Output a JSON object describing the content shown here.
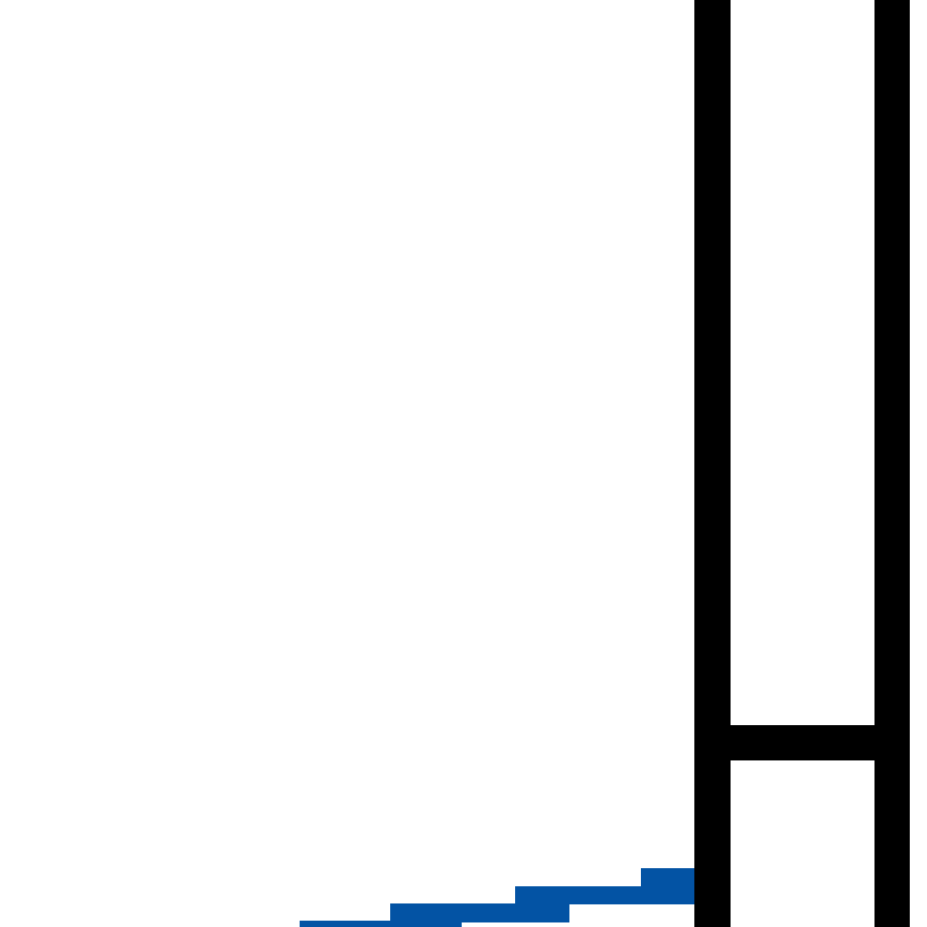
{
  "colors": {
    "background": "#ffffff",
    "frame": "#000000",
    "steps": "#0353a4"
  },
  "elements": {
    "frame": "black-ladder-frame",
    "steps": "blue-stepped-bars"
  }
}
